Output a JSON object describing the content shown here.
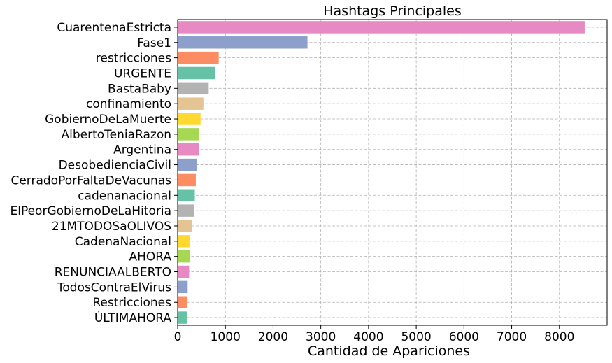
{
  "chart_data": {
    "type": "bar",
    "orientation": "horizontal",
    "title": "Hashtags Principales",
    "xlabel": "Cantidad de Apariciones",
    "ylabel": "",
    "xlim": [
      0,
      9000
    ],
    "xticks": [
      0,
      1000,
      2000,
      3000,
      4000,
      5000,
      6000,
      7000,
      8000
    ],
    "grid": true,
    "categories": [
      "CuarentenaEstricta",
      "Fase1",
      "restricciones",
      "URGENTE",
      "BastaBaby",
      "confinamiento",
      "GobiernoDeLaMuerte",
      "AlbertoTeniaRazon",
      "Argentina",
      "DesobedienciaCivil",
      "CerradoPorFaltaDeVacunas",
      "cadenanacional",
      "ElPeorGobiernoDeLaHitoria",
      "21MTODOSaOLIVOS",
      "CadenaNacional",
      "AHORA",
      "RENUNCIAALBERTO",
      "TodosContraElVirus",
      "Restricciones",
      "ÚLTIMAHORA"
    ],
    "values": [
      8530,
      2720,
      860,
      780,
      650,
      540,
      480,
      450,
      440,
      400,
      380,
      360,
      350,
      300,
      260,
      250,
      240,
      210,
      200,
      190
    ],
    "colors": [
      "#e78ac3",
      "#8da0cb",
      "#fc8d62",
      "#66c2a5",
      "#b3b3b3",
      "#e5c494",
      "#ffd92f",
      "#a6d854",
      "#e78ac3",
      "#8da0cb",
      "#fc8d62",
      "#66c2a5",
      "#b3b3b3",
      "#e5c494",
      "#ffd92f",
      "#a6d854",
      "#e78ac3",
      "#8da0cb",
      "#fc8d62",
      "#66c2a5"
    ]
  }
}
